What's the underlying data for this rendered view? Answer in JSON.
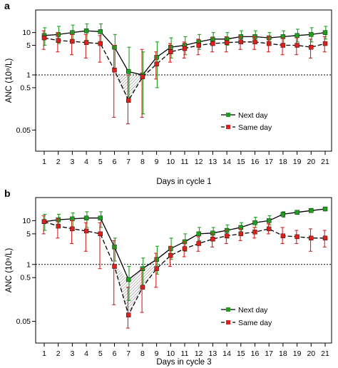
{
  "colors": {
    "next_day": "#1f9e1f",
    "same_day": "#d9211d",
    "line_next": "#000000",
    "line_same": "#000000",
    "hatch": "#555555"
  },
  "chart_data": [
    {
      "panel": "a",
      "type": "line",
      "scale_y": "log",
      "xlabel": "Days in cycle 1",
      "ylabel": "ANC (10⁹/L)",
      "ylim": [
        0.02,
        25
      ],
      "yticks": [
        0.05,
        0.5,
        1,
        5,
        10
      ],
      "ytick_labels": [
        "0.05",
        "0.5",
        "1",
        "5",
        "10"
      ],
      "x": [
        1,
        2,
        3,
        4,
        5,
        6,
        7,
        8,
        9,
        10,
        11,
        12,
        13,
        14,
        15,
        16,
        17,
        18,
        19,
        20,
        21
      ],
      "threshold": 1,
      "legend": "bottom-right",
      "series": [
        {
          "name": "Next day",
          "values": [
            8.5,
            9.0,
            10.0,
            11.0,
            10.5,
            4.5,
            1.2,
            1.0,
            2.6,
            4.5,
            5.0,
            6.0,
            7.0,
            7.0,
            8.0,
            8.0,
            7.5,
            8.0,
            8.5,
            9.0,
            10.0
          ],
          "low": [
            5.0,
            5.5,
            6.0,
            6.5,
            6.0,
            1.2,
            0.3,
            0.12,
            0.5,
            2.5,
            3.0,
            4.0,
            5.0,
            5.0,
            6.0,
            6.0,
            5.0,
            5.5,
            6.0,
            6.0,
            7.0
          ],
          "high": [
            13.0,
            14.0,
            15.0,
            16.0,
            16.0,
            9.0,
            4.5,
            3.5,
            6.0,
            7.5,
            8.0,
            9.0,
            10.0,
            10.0,
            11.0,
            11.0,
            10.0,
            11.0,
            12.0,
            13.0,
            14.0
          ]
        },
        {
          "name": "Same day",
          "values": [
            7.5,
            6.5,
            6.2,
            5.8,
            5.5,
            1.3,
            0.25,
            0.9,
            1.8,
            3.5,
            4.2,
            5.0,
            5.5,
            5.8,
            6.0,
            6.0,
            5.5,
            5.0,
            5.0,
            4.5,
            5.5
          ],
          "low": [
            4.0,
            3.5,
            3.0,
            2.5,
            2.0,
            0.1,
            0.07,
            0.1,
            0.8,
            2.0,
            2.5,
            3.0,
            3.5,
            3.5,
            4.0,
            4.0,
            3.5,
            3.0,
            3.0,
            2.5,
            3.5
          ],
          "high": [
            11.0,
            10.0,
            9.0,
            9.0,
            8.5,
            5.0,
            1.0,
            4.0,
            3.5,
            5.5,
            6.0,
            7.0,
            7.5,
            8.0,
            8.0,
            8.0,
            8.0,
            7.5,
            7.5,
            7.0,
            8.0
          ]
        }
      ]
    },
    {
      "panel": "b",
      "type": "line",
      "scale_y": "log",
      "xlabel": "Days in cycle 3",
      "ylabel": "ANC (10⁹/L)",
      "ylim": [
        0.02,
        25
      ],
      "yticks": [
        0.05,
        0.5,
        1,
        5,
        10
      ],
      "ytick_labels": [
        "0.05",
        "0.5",
        "1",
        "5",
        "10"
      ],
      "x": [
        1,
        2,
        3,
        4,
        5,
        6,
        7,
        8,
        9,
        10,
        11,
        12,
        13,
        14,
        15,
        16,
        17,
        18,
        19,
        20,
        21
      ],
      "threshold": 1,
      "legend": "bottom-right",
      "series": [
        {
          "name": "Next day",
          "values": [
            9.5,
            10.5,
            11.0,
            11.5,
            11.5,
            2.5,
            0.45,
            0.8,
            1.3,
            2.3,
            3.3,
            5.0,
            5.2,
            6.0,
            7.0,
            9.0,
            10.0,
            14.0,
            15.5,
            17.0,
            18.5
          ],
          "low": [
            6.0,
            7.0,
            7.0,
            7.0,
            7.0,
            1.2,
            0.15,
            0.3,
            0.6,
            1.3,
            2.0,
            3.5,
            3.5,
            4.0,
            5.0,
            7.0,
            8.0,
            12.0,
            14.0,
            16.0,
            17.0
          ],
          "high": [
            14.0,
            14.0,
            15.0,
            16.0,
            16.0,
            4.0,
            0.9,
            1.4,
            2.6,
            4.0,
            5.0,
            7.0,
            7.0,
            8.0,
            9.0,
            12.0,
            13.0,
            16.0,
            17.0,
            19.0,
            20.0
          ]
        },
        {
          "name": "Same day",
          "values": [
            9.5,
            7.5,
            6.5,
            5.8,
            5.0,
            0.9,
            0.07,
            0.3,
            0.8,
            1.6,
            2.3,
            3.0,
            3.8,
            4.5,
            5.0,
            5.5,
            6.5,
            4.5,
            4.3,
            4.0,
            4.0
          ],
          "low": [
            5.0,
            4.0,
            3.0,
            2.0,
            0.8,
            0.12,
            0.035,
            0.08,
            0.3,
            0.9,
            1.5,
            2.0,
            2.5,
            3.0,
            3.5,
            4.0,
            5.0,
            3.0,
            3.0,
            2.0,
            2.5
          ],
          "high": [
            13.0,
            11.0,
            10.0,
            9.0,
            9.0,
            3.5,
            0.3,
            0.8,
            1.8,
            2.6,
            3.3,
            4.3,
            5.0,
            6.0,
            6.5,
            7.0,
            8.5,
            7.0,
            6.0,
            6.5,
            6.0
          ]
        }
      ]
    }
  ]
}
